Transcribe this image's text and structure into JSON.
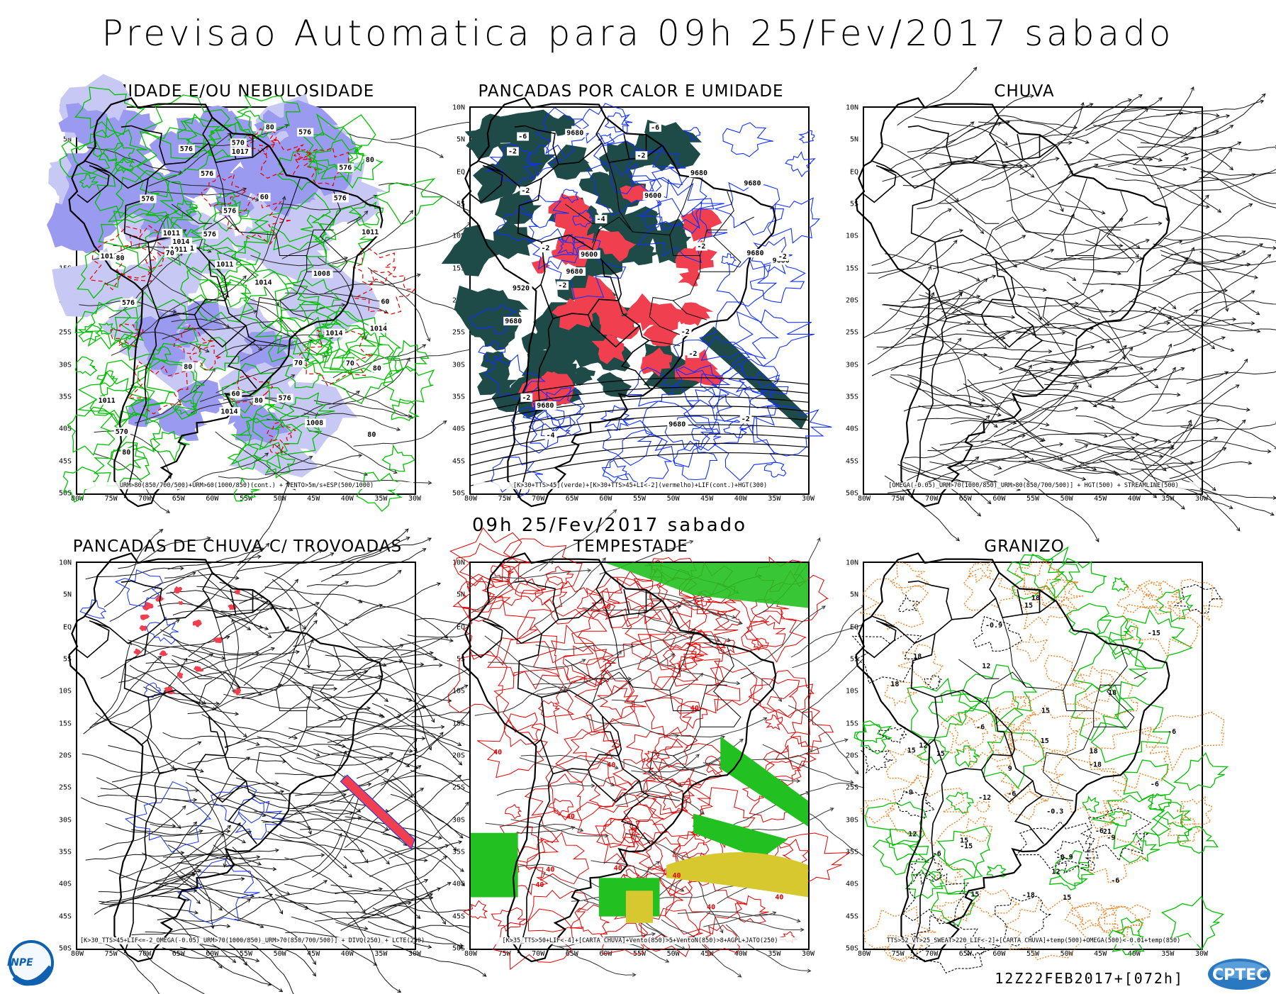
{
  "header": {
    "title": "Previsao Automatica  para 09h 25/Fev/2017 sabado",
    "subtitle": "09h 25/Fev/2017 sabado"
  },
  "axes": {
    "lat": [
      "10N",
      "5N",
      "EQ",
      "5S",
      "10S",
      "15S",
      "20S",
      "25S",
      "30S",
      "35S",
      "40S",
      "45S",
      "50S"
    ],
    "lon": [
      "80W",
      "75W",
      "70W",
      "65W",
      "60W",
      "55W",
      "50W",
      "45W",
      "40W",
      "35W",
      "30W"
    ]
  },
  "panels": [
    {
      "title": "UMIDADE E/OU NEBULOSIDADE",
      "legend": "URM>80(850/700/500)+URM>60(1000/850)(cont.) + VENTO>5m/s+ESP(500/1000)",
      "labels": [
        "1014",
        "1011",
        "1011",
        "576",
        "576",
        "576",
        "576",
        "576",
        "1011",
        "1011",
        "576",
        "1011",
        "1008",
        "1011",
        "1014",
        "576",
        "576",
        "1008",
        "1011",
        "576",
        "570",
        "1014",
        "1017",
        "1014",
        "570",
        "576",
        "1014",
        "80",
        "80",
        "80",
        "70",
        "80",
        "80",
        "80",
        "60",
        "70",
        "80",
        "60",
        "60",
        "70",
        "80"
      ]
    },
    {
      "title": "PANCADAS POR CALOR E UMIDADE",
      "legend": "[K>30+TTS>45](verde)+[K>30+TTS>45+LI<-2](vermelho)+LIF(cont.)+HGT(300)",
      "labels": [
        "9680",
        "9680",
        "9680",
        "9680",
        "9680",
        "9680",
        "9680",
        "9680",
        "9680",
        "9600",
        "9600",
        "9520",
        "-2",
        "-2",
        "-2",
        "-2",
        "-2",
        "-2",
        "-2",
        "-2",
        "-4",
        "-6",
        "-2",
        "-2",
        "-4",
        "-6",
        "-2"
      ]
    },
    {
      "title": "CHUVA",
      "legend": "[OMEGA(-0.05)_URM>70(1000/850)_URM>80(850/700/500)] + HGT(500) + STREAMLINE(500)",
      "labels": []
    },
    {
      "title": "PANCADAS DE CHUVA C/ TROVOADAS",
      "legend": "[K>30_TTS>45+LIF<=-2_OMEGA(-0.05)_URM>70(1000/850)_URM>70(850/700/500)] + DIVQ(250) + LCTE(250)",
      "labels": []
    },
    {
      "title": "TEMPESTADE",
      "legend": "[K>35_TTS>50+LIF<-4]+[CARTA CHUVA]+Vento(850)>5+VentoN(850)>8+AGPL+JATO(250)",
      "labels": [
        "40",
        "40",
        "40",
        "40",
        "40",
        "40",
        "40",
        "40",
        "40",
        "40",
        "40"
      ]
    },
    {
      "title": "GRANIZO",
      "legend": "TTS>52_VT>25_SWEAT>220_LIF<-2]+[CARTA CHUVA]+temp(500)+OMEGA(500)<-0.01+temp(850)",
      "labels": [
        "-15",
        "-18",
        "-0.9",
        "-0.9",
        "-6",
        "-6",
        "-6",
        "-6",
        "-6",
        "-6",
        "-9",
        "-9",
        "-12",
        "-15",
        "-18",
        "18",
        "18",
        "18",
        "15",
        "15",
        "12",
        "12",
        "15",
        "18",
        "-0.3",
        "-6",
        "15",
        "15",
        "21",
        "18",
        "15",
        "12",
        "15",
        "12",
        "9",
        "15"
      ]
    }
  ],
  "footer": {
    "run_label": "12Z22FEB2017+[072h]",
    "logo_left_text": "INPE",
    "logo_right_text": "CPTEC"
  },
  "colors": {
    "humidity_blue": "#9a9af0",
    "humidity_light": "#c8c8f4",
    "contour_green": "#00c000",
    "contour_red": "#e00000",
    "convective_dark": "#1e4a48",
    "convective_red": "#f04050",
    "lif_blue": "#1030ff",
    "storm_green": "#22c020",
    "jet_yellow": "#d8c830",
    "hail_orange": "#f08020"
  }
}
